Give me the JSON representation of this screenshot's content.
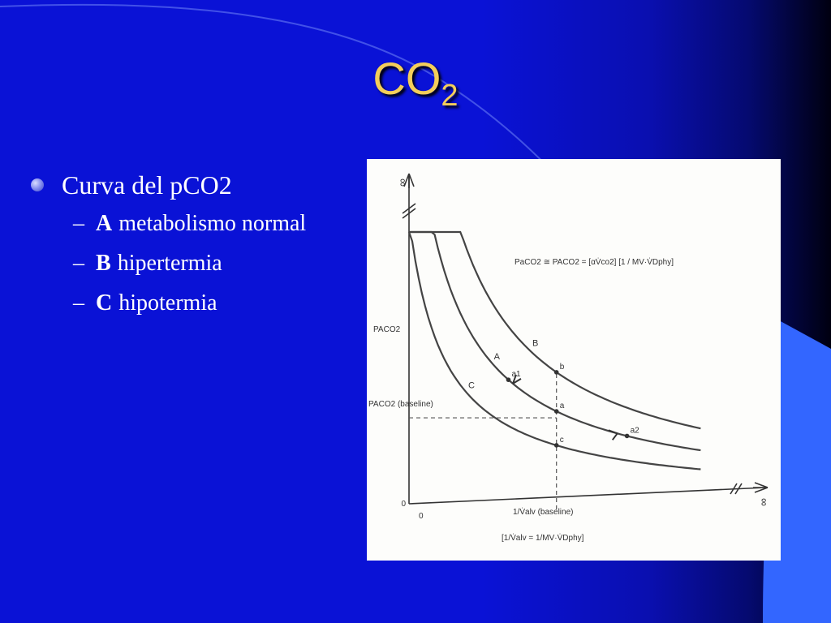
{
  "slide": {
    "title_main": "CO",
    "title_sub": "2",
    "bullet": "Curva del pCO2",
    "subitems": [
      {
        "letter": "A",
        "text": "metabolismo normal"
      },
      {
        "letter": "B",
        "text": "hipertermia"
      },
      {
        "letter": "C",
        "text": "hipotermia"
      }
    ]
  },
  "colors": {
    "background": "#0a12d6",
    "title": "#f4ce5a",
    "text": "#ffffff",
    "accent_shape": "#3366ff"
  },
  "chart_data": {
    "type": "line",
    "xlabel": "1/V̇alv (baseline)",
    "ylabel": "PACO2",
    "infinity_mark": "∞",
    "x_zero": "0",
    "y_zero": "0",
    "equation": "PaCO2 ≅ PACO2 = [αV̇co2] [1 / MV·V̇Dphy]",
    "x_equation": "[1/V̇alv = 1/MV·V̇Dphy]",
    "baseline_label": "PACO2 (baseline)",
    "series": [
      {
        "name": "A",
        "k": 52
      },
      {
        "name": "B",
        "k": 75
      },
      {
        "name": "C",
        "k": 32
      }
    ],
    "points": [
      {
        "label": "a",
        "series": "A",
        "x": 2.3
      },
      {
        "label": "b",
        "series": "B",
        "x": 2.3
      },
      {
        "label": "c",
        "series": "C",
        "x": 2.3
      },
      {
        "label": "a1",
        "series": "A",
        "x": 1.55
      },
      {
        "label": "a2",
        "series": "A",
        "x": 3.4
      }
    ],
    "baseline_x": 2.3
  }
}
